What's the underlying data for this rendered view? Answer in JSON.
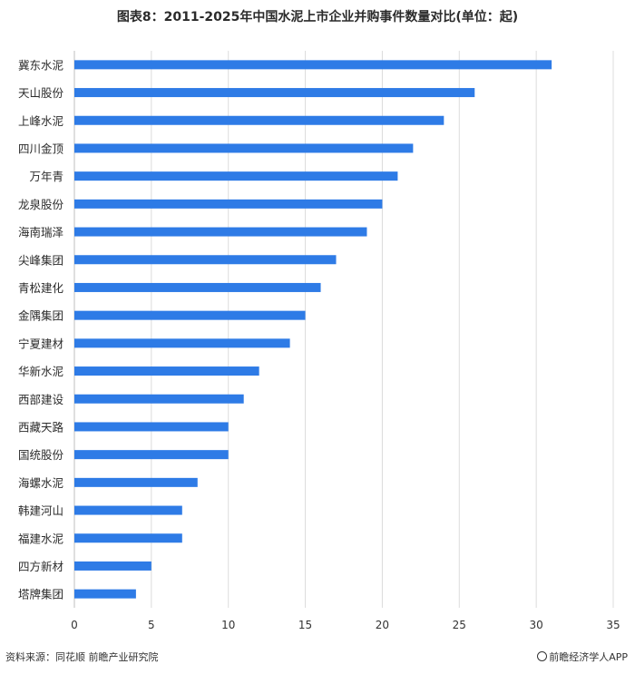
{
  "chart_data": {
    "type": "bar",
    "orientation": "horizontal",
    "title": "图表8：2011-2025年中国水泥上市企业并购事件数量对比(单位：起)",
    "categories": [
      "冀东水泥",
      "天山股份",
      "上峰水泥",
      "四川金顶",
      "万年青",
      "龙泉股份",
      "海南瑞泽",
      "尖峰集团",
      "青松建化",
      "金隅集团",
      "宁夏建材",
      "华新水泥",
      "西部建设",
      "西藏天路",
      "国统股份",
      "海螺水泥",
      "韩建河山",
      "福建水泥",
      "四方新材",
      "塔牌集团"
    ],
    "values": [
      31,
      26,
      24,
      22,
      21,
      20,
      19,
      17,
      16,
      15,
      14,
      12,
      11,
      10,
      10,
      8,
      7,
      7,
      5,
      4
    ],
    "xlim": [
      0,
      35
    ],
    "xticks": [
      0,
      5,
      10,
      15,
      20,
      25,
      30,
      35
    ],
    "bar_color": "#2e7be6",
    "grid": true
  },
  "footer": {
    "source": "资料来源：同花顺 前瞻产业研究院",
    "brand": "前瞻经济学人APP"
  }
}
